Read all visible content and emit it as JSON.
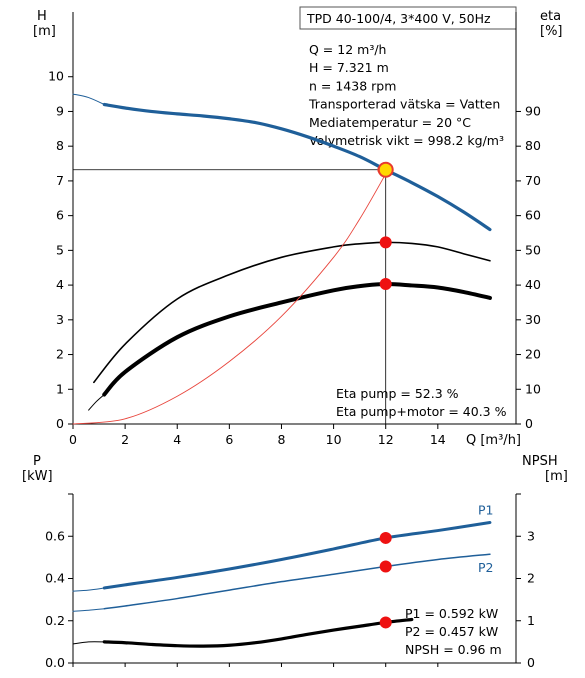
{
  "chart_data": [
    {
      "type": "line",
      "title": "TPD 40-100/4, 3*400 V, 50Hz",
      "xlabel": "Q [m³/h]",
      "ylabel_left": "H\n[m]",
      "ylabel_right": "eta\n[%]",
      "xlim": [
        0,
        17
      ],
      "ylim_left": [
        0,
        11
      ],
      "ylim_right": [
        0,
        110
      ],
      "x_ticks": [
        "0",
        "2",
        "4",
        "6",
        "8",
        "10",
        "12",
        "14"
      ],
      "y_left_ticks": [
        "0",
        "1",
        "2",
        "3",
        "4",
        "5",
        "6",
        "7",
        "8",
        "9",
        "10"
      ],
      "y_right_ticks": [
        "0",
        "10",
        "20",
        "30",
        "40",
        "50",
        "60",
        "70",
        "80",
        "90"
      ],
      "grid": false,
      "info_lines": [
        "Q = 12 m³/h",
        "H = 7.321 m",
        "n = 1438 rpm",
        "Transporterad vätska = Vatten",
        "Mediatemperatur = 20 °C",
        "Volymetrisk vikt = 998.2 kg/m³"
      ],
      "bottom_lines": [
        "Eta pump = 52.3 %",
        "Eta pump+motor = 40.3 %"
      ],
      "series": [
        {
          "key": "H",
          "axis": "left",
          "color": "#1f5f99",
          "x": [
            1.2,
            2,
            3,
            4,
            5,
            6,
            7,
            8,
            9,
            10,
            11,
            12,
            13,
            14,
            15,
            16
          ],
          "values": [
            9.2,
            9.1,
            9.0,
            8.93,
            8.87,
            8.79,
            8.68,
            8.5,
            8.27,
            8.0,
            7.7,
            7.32,
            6.95,
            6.55,
            6.1,
            5.6
          ]
        },
        {
          "key": "H_extension",
          "axis": "left",
          "color": "#1f5f99",
          "x": [
            0,
            0.6,
            1.2
          ],
          "values": [
            9.5,
            9.4,
            9.2
          ]
        },
        {
          "key": "eta_pump",
          "axis": "right",
          "color": "#000000",
          "x": [
            0.8,
            2,
            4,
            6,
            8,
            10,
            11,
            12,
            13,
            14,
            15,
            16
          ],
          "values": [
            12,
            23,
            36,
            43,
            48,
            51,
            51.9,
            52.3,
            52,
            51,
            49,
            47
          ]
        },
        {
          "key": "eta_pump_motor",
          "axis": "right",
          "color": "#000000",
          "x": [
            1.2,
            2,
            4,
            6,
            8,
            10,
            11,
            12,
            13,
            14,
            15,
            16
          ],
          "values": [
            8.5,
            15,
            25,
            31,
            35,
            38.5,
            39.7,
            40.3,
            39.9,
            39.3,
            38,
            36.3
          ]
        },
        {
          "key": "eta_pump_motor_extension",
          "axis": "right",
          "color": "#000000",
          "x": [
            0.6,
            0.9,
            1.2
          ],
          "values": [
            4,
            6.5,
            8.5
          ]
        },
        {
          "key": "system_curve",
          "axis": "left",
          "color": "#e8453c",
          "x": [
            0,
            2,
            4,
            6,
            8,
            10,
            11,
            12
          ],
          "values": [
            0,
            0.15,
            0.8,
            1.8,
            3.1,
            4.8,
            5.9,
            7.2
          ]
        }
      ],
      "markers": [
        {
          "x": 12,
          "y": 7.321,
          "axis": "left",
          "color": "#ffd700",
          "stroke": "#e83a2e"
        },
        {
          "x": 12,
          "y": 52.3,
          "axis": "right",
          "color": "#ee1111"
        },
        {
          "x": 12,
          "y": 40.3,
          "axis": "right",
          "color": "#ee1111"
        }
      ],
      "operating_point": {
        "x": 12,
        "y": 7.321
      }
    },
    {
      "type": "line",
      "xlabel": "",
      "ylabel_left": "P\n[kW]",
      "ylabel_right": "NPSH\n[m]",
      "xlim": [
        0,
        17
      ],
      "ylim_left": [
        0,
        0.8
      ],
      "ylim_right": [
        0,
        4
      ],
      "y_left_ticks": [
        "0.0",
        "0.2",
        "0.4",
        "0.6"
      ],
      "y_right_ticks": [
        "0",
        "1",
        "2",
        "3"
      ],
      "grid": false,
      "bottom_lines": [
        "P1 = 0.592 kW",
        "P2 = 0.457 kW",
        "NPSH = 0.96 m"
      ],
      "series": [
        {
          "key": "P1",
          "name": "P1",
          "axis": "left",
          "color": "#1f5f99",
          "x": [
            1.2,
            2,
            4,
            6,
            8,
            10,
            12,
            14,
            16
          ],
          "values": [
            0.355,
            0.37,
            0.405,
            0.445,
            0.49,
            0.54,
            0.592,
            0.627,
            0.665
          ]
        },
        {
          "key": "P1_extension",
          "axis": "left",
          "color": "#1f5f99",
          "x": [
            0,
            0.6,
            1.2
          ],
          "values": [
            0.34,
            0.345,
            0.355
          ]
        },
        {
          "key": "P2",
          "name": "P2",
          "axis": "left",
          "color": "#1f5f99",
          "x": [
            1.2,
            2,
            4,
            6,
            8,
            10,
            12,
            14,
            16
          ],
          "values": [
            0.257,
            0.27,
            0.305,
            0.345,
            0.385,
            0.42,
            0.457,
            0.49,
            0.515
          ]
        },
        {
          "key": "P2_extension",
          "axis": "left",
          "color": "#1f5f99",
          "x": [
            0,
            0.6,
            1.2
          ],
          "values": [
            0.245,
            0.25,
            0.257
          ]
        },
        {
          "key": "NPSH",
          "axis": "right",
          "color": "#000000",
          "x": [
            1.2,
            2,
            3,
            4,
            5,
            6,
            7,
            8,
            9,
            10,
            11,
            12,
            13
          ],
          "values": [
            0.5,
            0.48,
            0.44,
            0.41,
            0.4,
            0.42,
            0.48,
            0.57,
            0.68,
            0.78,
            0.87,
            0.96,
            1.03
          ]
        },
        {
          "key": "NPSH_extension",
          "axis": "right",
          "color": "#000000",
          "x": [
            0,
            0.6,
            1.2
          ],
          "values": [
            0.45,
            0.5,
            0.5
          ]
        }
      ],
      "markers": [
        {
          "x": 12,
          "y": 0.592,
          "axis": "left",
          "color": "#ee1111"
        },
        {
          "x": 12,
          "y": 0.457,
          "axis": "left",
          "color": "#ee1111"
        },
        {
          "x": 12,
          "y": 0.96,
          "axis": "right",
          "color": "#ee1111"
        }
      ]
    }
  ]
}
